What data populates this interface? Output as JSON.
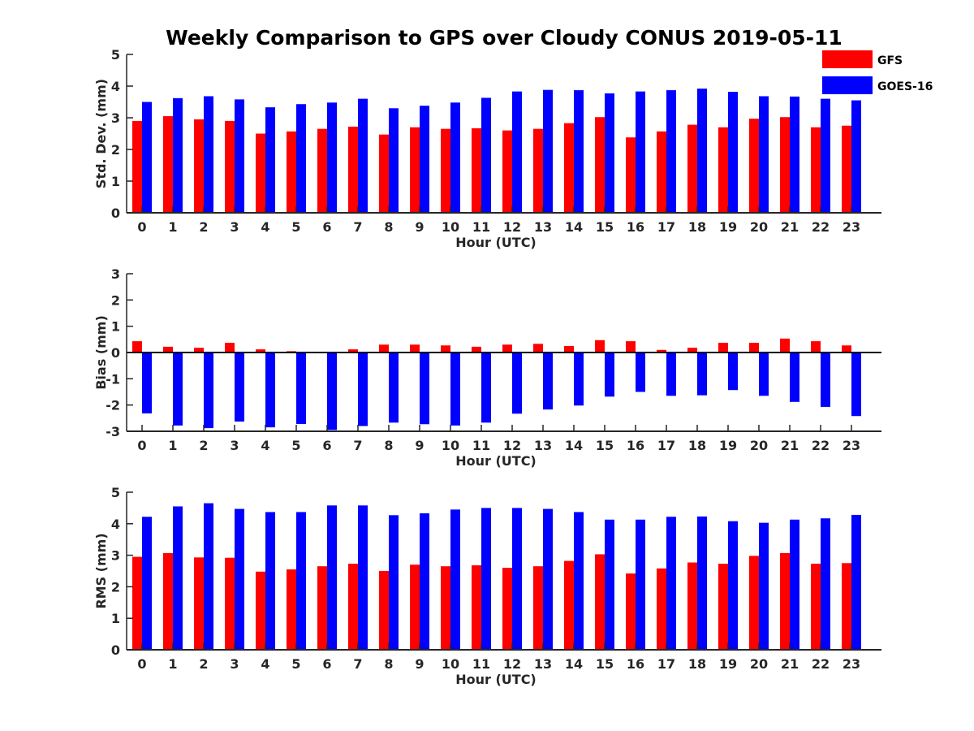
{
  "title": "Weekly Comparison to GPS over Cloudy CONUS 2019-05-11",
  "colors": {
    "GFS": "#ff0000",
    "GOES-16": "#0000ff"
  },
  "chart_data": [
    {
      "type": "bar",
      "title": "Weekly Comparison to GPS over Cloudy CONUS 2019-05-11",
      "xlabel": "Hour (UTC)",
      "ylabel": "Std. Dev. (mm)",
      "ylim": [
        0,
        5
      ],
      "yticks": [
        "0",
        "1",
        "2",
        "3",
        "4",
        "5"
      ],
      "categories": [
        "0",
        "1",
        "2",
        "3",
        "4",
        "5",
        "6",
        "7",
        "8",
        "9",
        "10",
        "11",
        "12",
        "13",
        "14",
        "15",
        "16",
        "17",
        "18",
        "19",
        "20",
        "21",
        "22",
        "23"
      ],
      "legend": "top-right",
      "grid": false,
      "series": [
        {
          "name": "GFS",
          "values": [
            2.9,
            3.05,
            2.95,
            2.9,
            2.5,
            2.57,
            2.65,
            2.72,
            2.47,
            2.7,
            2.65,
            2.67,
            2.6,
            2.65,
            2.83,
            3.02,
            2.38,
            2.57,
            2.78,
            2.7,
            2.97,
            3.02,
            2.7,
            2.75
          ]
        },
        {
          "name": "GOES-16",
          "values": [
            3.5,
            3.62,
            3.68,
            3.58,
            3.33,
            3.43,
            3.48,
            3.6,
            3.3,
            3.38,
            3.48,
            3.63,
            3.83,
            3.88,
            3.87,
            3.77,
            3.83,
            3.87,
            3.92,
            3.82,
            3.68,
            3.67,
            3.6,
            3.55
          ]
        }
      ]
    },
    {
      "type": "bar",
      "xlabel": "Hour (UTC)",
      "ylabel": "Bias (mm)",
      "ylim": [
        -3,
        3
      ],
      "yticks": [
        "-3",
        "-2",
        "-1",
        "0",
        "1",
        "2",
        "3"
      ],
      "categories": [
        "0",
        "1",
        "2",
        "3",
        "4",
        "5",
        "6",
        "7",
        "8",
        "9",
        "10",
        "11",
        "12",
        "13",
        "14",
        "15",
        "16",
        "17",
        "18",
        "19",
        "20",
        "21",
        "22",
        "23"
      ],
      "grid": false,
      "series": [
        {
          "name": "GFS",
          "values": [
            0.43,
            0.22,
            0.18,
            0.37,
            0.12,
            0.05,
            -0.03,
            0.12,
            0.3,
            0.3,
            0.27,
            0.22,
            0.3,
            0.33,
            0.25,
            0.47,
            0.43,
            0.1,
            0.18,
            0.37,
            0.37,
            0.53,
            0.43,
            0.27
          ]
        },
        {
          "name": "GOES-16",
          "values": [
            -2.32,
            -2.78,
            -2.88,
            -2.63,
            -2.85,
            -2.72,
            -2.95,
            -2.8,
            -2.67,
            -2.73,
            -2.78,
            -2.67,
            -2.33,
            -2.17,
            -2.02,
            -1.68,
            -1.5,
            -1.65,
            -1.63,
            -1.43,
            -1.65,
            -1.88,
            -2.07,
            -2.42
          ]
        }
      ]
    },
    {
      "type": "bar",
      "xlabel": "Hour (UTC)",
      "ylabel": "RMS (mm)",
      "ylim": [
        0,
        5
      ],
      "yticks": [
        "0",
        "1",
        "2",
        "3",
        "4",
        "5"
      ],
      "categories": [
        "0",
        "1",
        "2",
        "3",
        "4",
        "5",
        "6",
        "7",
        "8",
        "9",
        "10",
        "11",
        "12",
        "13",
        "14",
        "15",
        "16",
        "17",
        "18",
        "19",
        "20",
        "21",
        "22",
        "23"
      ],
      "grid": false,
      "series": [
        {
          "name": "GFS",
          "values": [
            2.95,
            3.07,
            2.93,
            2.92,
            2.48,
            2.55,
            2.65,
            2.73,
            2.5,
            2.7,
            2.65,
            2.68,
            2.6,
            2.65,
            2.82,
            3.03,
            2.42,
            2.58,
            2.77,
            2.73,
            2.98,
            3.07,
            2.73,
            2.75
          ]
        },
        {
          "name": "GOES-16",
          "values": [
            4.22,
            4.55,
            4.65,
            4.47,
            4.37,
            4.37,
            4.58,
            4.58,
            4.27,
            4.33,
            4.45,
            4.5,
            4.5,
            4.47,
            4.37,
            4.13,
            4.13,
            4.22,
            4.23,
            4.08,
            4.03,
            4.13,
            4.17,
            4.28
          ]
        }
      ]
    }
  ]
}
